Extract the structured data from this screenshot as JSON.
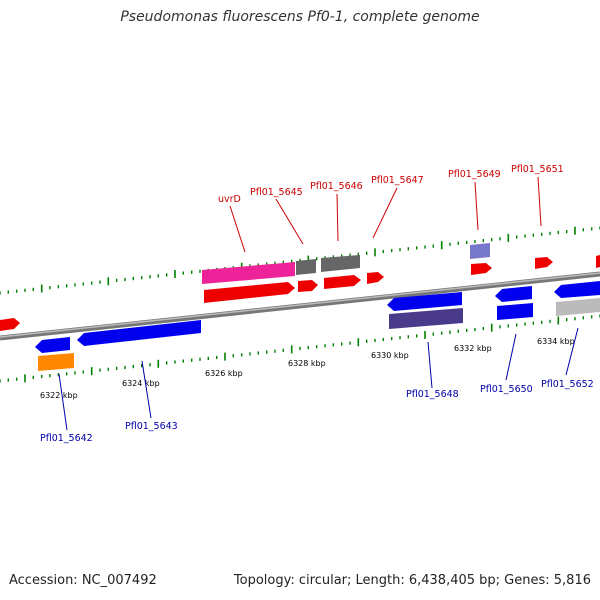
{
  "title": "Pseudomonas fluorescens Pf0-1, complete genome",
  "footer": {
    "accession": "Accession: NC_007492",
    "stats": "Topology: circular; Length: 6,438,405 bp; Genes: 5,816"
  },
  "colors": {
    "forward_label": "#cc0000",
    "reverse_label": "#0000aa",
    "ruler_tick": "#008000",
    "backbone": "#888888"
  },
  "ruler_labels": [
    {
      "text": "6322 kbp"
    },
    {
      "text": "6324 kbp"
    },
    {
      "text": "6326 kbp"
    },
    {
      "text": "6328 kbp"
    },
    {
      "text": "6330 kbp"
    },
    {
      "text": "6332 kbp"
    },
    {
      "text": "6334 kbp"
    }
  ],
  "forward_genes": [
    {
      "label": "uvrD"
    },
    {
      "label": "Pfl01_5645"
    },
    {
      "label": "Pfl01_5646"
    },
    {
      "label": "Pfl01_5647"
    },
    {
      "label": "Pfl01_5649"
    },
    {
      "label": "Pfl01_5651"
    }
  ],
  "reverse_genes": [
    {
      "label": "Pfl01_5642"
    },
    {
      "label": "Pfl01_5643"
    },
    {
      "label": "Pfl01_5648"
    },
    {
      "label": "Pfl01_5650"
    },
    {
      "label": "Pfl01_5652"
    }
  ],
  "feature_colors": {
    "cds": "#ff0000",
    "gene_pink": "#ee2299",
    "pseudo_gray": "#666666",
    "light_purple": "#7777cc",
    "cds_rev": "#0000ee",
    "dark_purple": "#4a3a8a",
    "orange": "#ff8800",
    "light_gray": "#bbbbbb"
  }
}
